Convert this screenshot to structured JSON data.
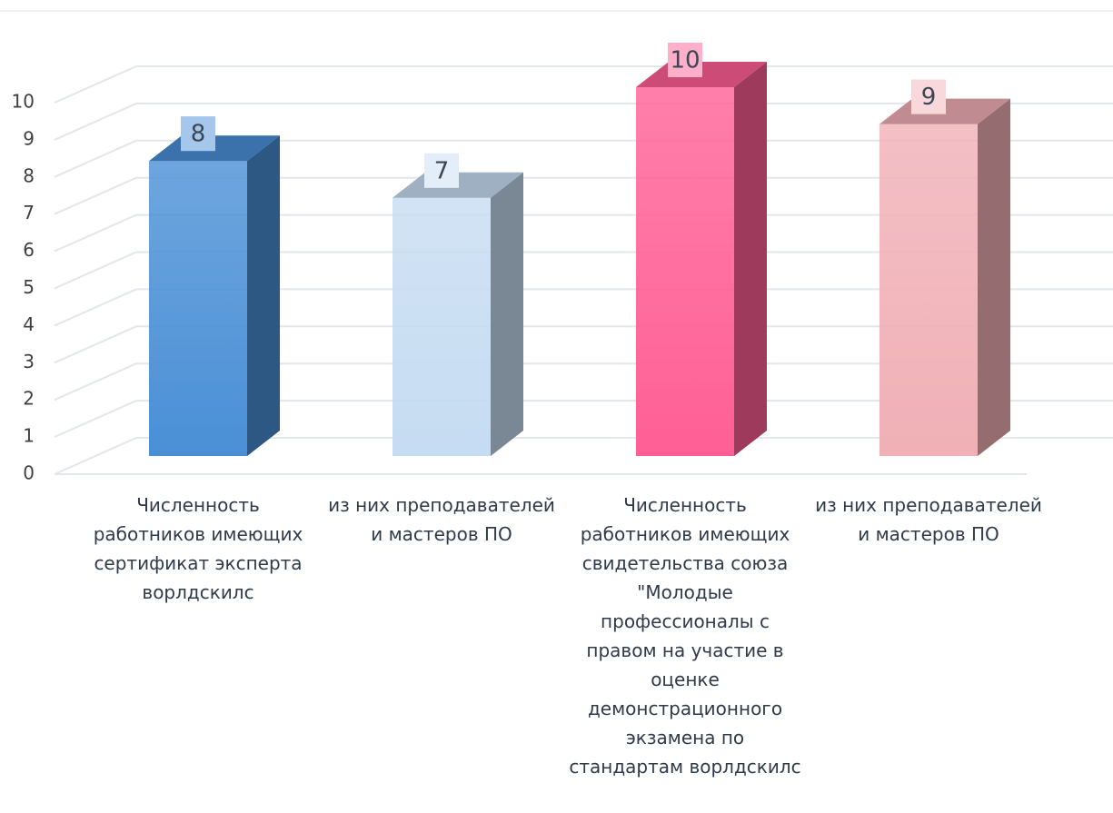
{
  "chart_data": {
    "type": "bar3d",
    "categories": [
      "Численность работников имеющих сертификат эксперта ворлдскилс",
      "из них преподавателей и мастеров ПО",
      "Численность работников имеющих свидетельства союза \"Молодые профессионалы с правом на участие в оценке демонстрационного экзамена по стандартам ворлдскилс",
      "из них преподавателей и мастеров ПО"
    ],
    "values": [
      8,
      7,
      10,
      9
    ],
    "colors": [
      "#4a8fd6",
      "#c6dcf2",
      "#ff5f95",
      "#f0b0b6"
    ],
    "ylim": [
      0,
      10
    ],
    "yticks": [
      0,
      1,
      2,
      3,
      4,
      5,
      6,
      7,
      8,
      9,
      10
    ],
    "grid": true
  }
}
